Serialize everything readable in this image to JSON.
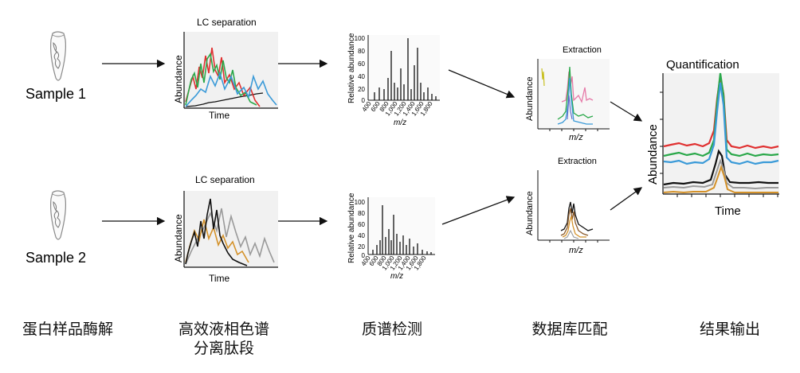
{
  "samples": [
    {
      "label": "Sample 1"
    },
    {
      "label": "Sample 2"
    }
  ],
  "lc": {
    "title": "LC separation",
    "ylabel": "Abundance",
    "xlabel": "Time"
  },
  "ms": {
    "ylabel": "Relative abundance",
    "xlabel": "m/z",
    "yticks": [
      "0",
      "20",
      "40",
      "60",
      "80",
      "100"
    ],
    "xticks": [
      "400",
      "600",
      "800",
      "1,000",
      "1,200",
      "1,400",
      "1,600",
      "1,800"
    ]
  },
  "extraction": {
    "title": "Extraction",
    "ylabel": "Abundance",
    "xlabel": "m/z"
  },
  "quant": {
    "title": "Quantification",
    "ylabel": "Abundance",
    "xlabel": "Time"
  },
  "stages": [
    {
      "label": "蛋白样品酶解"
    },
    {
      "label": "高效液相色谱\n分离肽段"
    },
    {
      "label": "质谱检测"
    },
    {
      "label": "数据库匹配"
    },
    {
      "label": "结果输出"
    }
  ],
  "colors": {
    "red": "#e03030",
    "green": "#2aa84a",
    "blue": "#3a9ad8",
    "black": "#111111",
    "orange": "#d4922a",
    "gray": "#9a9a9a"
  }
}
